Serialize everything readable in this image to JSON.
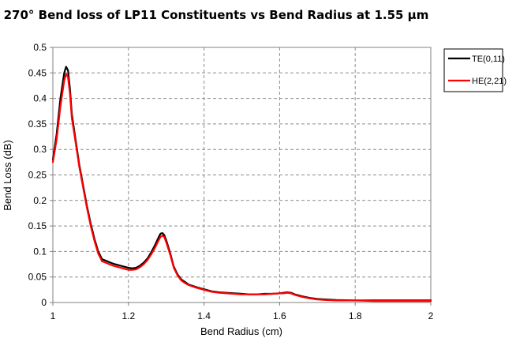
{
  "chart_data": {
    "type": "line",
    "title": "270° Bend loss of LP11 Constituents vs Bend Radius at 1.55 μm",
    "xlabel": "Bend Radius (cm)",
    "ylabel": "Bend Loss (dB)",
    "xlim": [
      1,
      2
    ],
    "ylim": [
      0,
      0.5
    ],
    "x_ticks": [
      "1",
      "1.2",
      "1.4",
      "1.6",
      "1.8",
      "2"
    ],
    "y_ticks": [
      "0",
      "0.05",
      "0.1",
      "0.15",
      "0.2",
      "0.25",
      "0.3",
      "0.35",
      "0.4",
      "0.45",
      "0.5"
    ],
    "grid": true,
    "legend_position": "right",
    "series": [
      {
        "name": "TE(0,11)",
        "color": "#000000",
        "x": [
          1.0,
          1.01,
          1.02,
          1.03,
          1.035,
          1.04,
          1.045,
          1.05,
          1.06,
          1.07,
          1.08,
          1.09,
          1.1,
          1.11,
          1.12,
          1.13,
          1.14,
          1.15,
          1.16,
          1.17,
          1.18,
          1.19,
          1.2,
          1.21,
          1.22,
          1.23,
          1.24,
          1.25,
          1.26,
          1.27,
          1.28,
          1.285,
          1.29,
          1.295,
          1.3,
          1.31,
          1.32,
          1.33,
          1.34,
          1.35,
          1.36,
          1.38,
          1.4,
          1.42,
          1.44,
          1.46,
          1.48,
          1.5,
          1.52,
          1.54,
          1.56,
          1.58,
          1.6,
          1.61,
          1.62,
          1.63,
          1.64,
          1.66,
          1.68,
          1.7,
          1.72,
          1.75,
          1.8,
          1.85,
          1.9,
          1.95,
          2.0
        ],
        "y": [
          0.28,
          0.33,
          0.4,
          0.45,
          0.462,
          0.455,
          0.42,
          0.37,
          0.32,
          0.27,
          0.23,
          0.19,
          0.155,
          0.125,
          0.1,
          0.085,
          0.082,
          0.079,
          0.076,
          0.074,
          0.072,
          0.07,
          0.068,
          0.067,
          0.068,
          0.072,
          0.078,
          0.086,
          0.098,
          0.112,
          0.128,
          0.135,
          0.136,
          0.132,
          0.122,
          0.098,
          0.07,
          0.055,
          0.045,
          0.04,
          0.035,
          0.03,
          0.026,
          0.022,
          0.02,
          0.019,
          0.018,
          0.017,
          0.016,
          0.016,
          0.017,
          0.017,
          0.018,
          0.019,
          0.02,
          0.019,
          0.016,
          0.012,
          0.009,
          0.007,
          0.006,
          0.005,
          0.004,
          0.004,
          0.004,
          0.004,
          0.004
        ]
      },
      {
        "name": "HE(2,21)",
        "color": "#ff0000",
        "x": [
          1.0,
          1.01,
          1.02,
          1.03,
          1.035,
          1.04,
          1.045,
          1.05,
          1.06,
          1.07,
          1.08,
          1.09,
          1.1,
          1.11,
          1.12,
          1.13,
          1.14,
          1.15,
          1.16,
          1.17,
          1.18,
          1.19,
          1.2,
          1.21,
          1.22,
          1.23,
          1.24,
          1.25,
          1.26,
          1.27,
          1.28,
          1.285,
          1.29,
          1.295,
          1.3,
          1.31,
          1.32,
          1.33,
          1.34,
          1.35,
          1.36,
          1.38,
          1.4,
          1.42,
          1.44,
          1.46,
          1.48,
          1.5,
          1.52,
          1.54,
          1.56,
          1.58,
          1.6,
          1.61,
          1.62,
          1.63,
          1.64,
          1.66,
          1.68,
          1.7,
          1.72,
          1.75,
          1.8,
          1.85,
          1.9,
          1.95,
          2.0
        ],
        "y": [
          0.275,
          0.32,
          0.385,
          0.435,
          0.448,
          0.442,
          0.41,
          0.362,
          0.315,
          0.266,
          0.226,
          0.186,
          0.151,
          0.121,
          0.096,
          0.081,
          0.078,
          0.075,
          0.072,
          0.07,
          0.068,
          0.066,
          0.064,
          0.064,
          0.065,
          0.069,
          0.075,
          0.083,
          0.094,
          0.107,
          0.122,
          0.129,
          0.131,
          0.128,
          0.118,
          0.095,
          0.068,
          0.053,
          0.043,
          0.038,
          0.034,
          0.029,
          0.025,
          0.021,
          0.019,
          0.018,
          0.017,
          0.016,
          0.016,
          0.016,
          0.016,
          0.017,
          0.018,
          0.018,
          0.019,
          0.018,
          0.015,
          0.011,
          0.008,
          0.006,
          0.005,
          0.004,
          0.004,
          0.003,
          0.003,
          0.003,
          0.003
        ]
      }
    ]
  }
}
